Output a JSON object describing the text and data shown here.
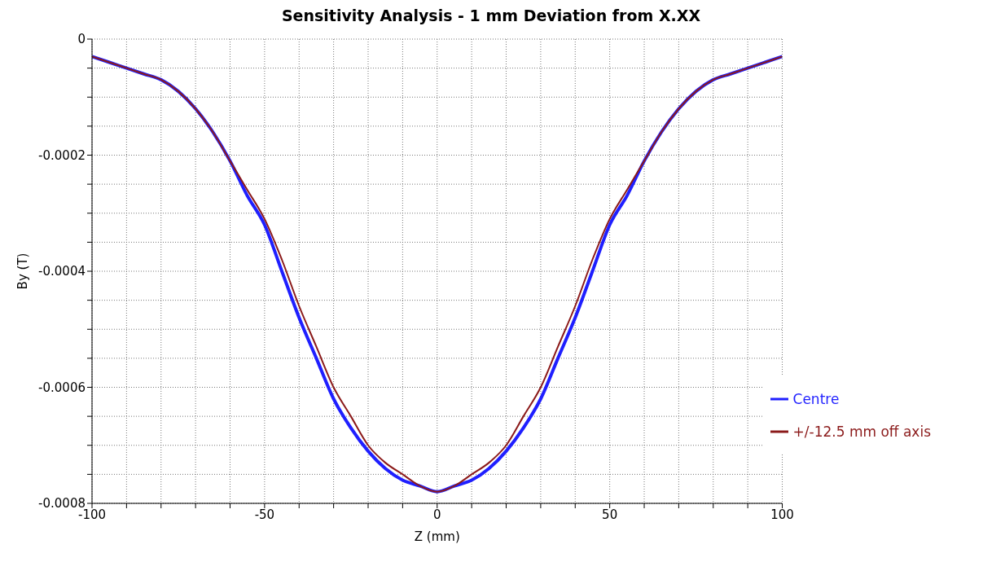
{
  "chart_data": {
    "type": "line",
    "title": "Sensitivity Analysis - 1 mm Deviation from X.XX",
    "xlabel": "Z (mm)",
    "ylabel": "By (T)",
    "x": [
      -100,
      -95,
      -90,
      -85,
      -80,
      -75,
      -70,
      -65,
      -60,
      -55,
      -50,
      -45,
      -40,
      -35,
      -30,
      -25,
      -20,
      -15,
      -10,
      -5,
      0,
      5,
      10,
      15,
      20,
      25,
      30,
      35,
      40,
      45,
      50,
      55,
      60,
      65,
      70,
      75,
      80,
      85,
      90,
      95,
      100
    ],
    "series": [
      {
        "name": "Centre",
        "color": "#1f1fff",
        "values": [
          -3e-05,
          -4e-05,
          -5e-05,
          -6e-05,
          -7e-05,
          -9e-05,
          -0.00012,
          -0.00016,
          -0.00021,
          -0.00027,
          -0.00032,
          -0.0004,
          -0.00048,
          -0.00055,
          -0.00062,
          -0.00067,
          -0.00071,
          -0.00074,
          -0.00076,
          -0.00077,
          -0.00078,
          -0.00077,
          -0.00076,
          -0.00074,
          -0.00071,
          -0.00067,
          -0.00062,
          -0.00055,
          -0.00048,
          -0.0004,
          -0.00032,
          -0.00027,
          -0.00021,
          -0.00016,
          -0.00012,
          -9e-05,
          -7e-05,
          -6e-05,
          -5e-05,
          -4e-05,
          -3e-05
        ]
      },
      {
        "name": "+/-12.5 mm off axis",
        "color": "#8b1a1a",
        "values": [
          -3e-05,
          -4e-05,
          -5e-05,
          -6e-05,
          -7e-05,
          -9e-05,
          -0.00012,
          -0.00016,
          -0.00021,
          -0.00026,
          -0.00031,
          -0.00038,
          -0.00046,
          -0.00053,
          -0.0006,
          -0.00065,
          -0.0007,
          -0.00073,
          -0.00075,
          -0.00077,
          -0.00078,
          -0.00077,
          -0.00075,
          -0.00073,
          -0.0007,
          -0.00065,
          -0.0006,
          -0.00053,
          -0.00046,
          -0.00038,
          -0.00031,
          -0.00026,
          -0.00021,
          -0.00016,
          -0.00012,
          -9e-05,
          -7e-05,
          -6e-05,
          -5e-05,
          -4e-05,
          -3e-05
        ]
      }
    ],
    "xlim": [
      -100,
      100
    ],
    "xticks": [
      -100,
      {
        "value": -90,
        "label": null
      },
      {
        "value": -80,
        "label": null
      },
      {
        "value": -70,
        "label": null
      },
      {
        "value": -60,
        "label": null
      },
      -50,
      {
        "value": -40,
        "label": null
      },
      {
        "value": -30,
        "label": null
      },
      {
        "value": -20,
        "label": null
      },
      {
        "value": -10,
        "label": null
      },
      0,
      {
        "value": 10,
        "label": null
      },
      {
        "value": 20,
        "label": null
      },
      {
        "value": 30,
        "label": null
      },
      {
        "value": 40,
        "label": null
      },
      50,
      {
        "value": 60,
        "label": null
      },
      {
        "value": 70,
        "label": null
      },
      {
        "value": 80,
        "label": null
      },
      {
        "value": 90,
        "label": null
      },
      100
    ],
    "ylim": [
      -0.0008,
      0
    ],
    "yticks": [
      {
        "value": -0.0008,
        "label": "-0.0008"
      },
      {
        "value": -0.00075,
        "label": null
      },
      {
        "value": -0.0007,
        "label": null
      },
      {
        "value": -0.00065,
        "label": null
      },
      {
        "value": -0.0006,
        "label": "-0.0006"
      },
      {
        "value": -0.00055,
        "label": null
      },
      {
        "value": -0.0005,
        "label": null
      },
      {
        "value": -0.00045,
        "label": null
      },
      {
        "value": -0.0004,
        "label": "-0.0004"
      },
      {
        "value": -0.00035,
        "label": null
      },
      {
        "value": -0.0003,
        "label": null
      },
      {
        "value": -0.00025,
        "label": null
      },
      {
        "value": -0.0002,
        "label": "-0.0002"
      },
      {
        "value": -0.00015,
        "label": null
      },
      {
        "value": -0.0001,
        "label": null
      },
      {
        "value": -5e-05,
        "label": null
      },
      0
    ],
    "grid": true,
    "legend": "bottom right",
    "marker": "none",
    "line_style": "solid"
  }
}
